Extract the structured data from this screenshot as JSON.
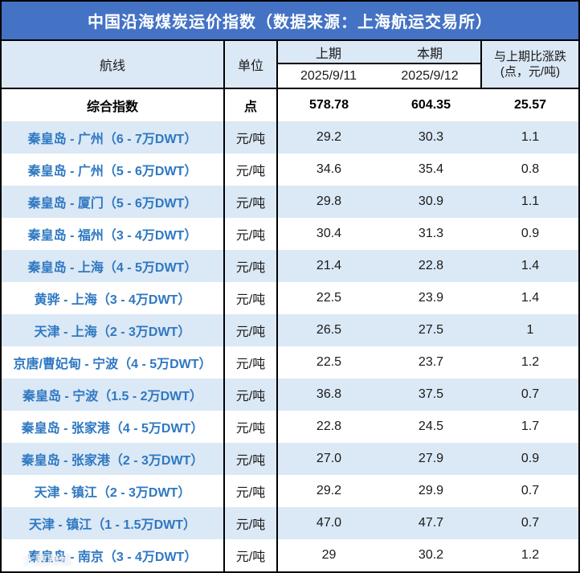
{
  "title": "中国沿海煤炭运价指数（数据来源：上海航运交易所）",
  "header": {
    "route_label": "航线",
    "unit_label": "单位",
    "prev_label": "上期",
    "curr_label": "本期",
    "prev_date": "2025/9/11",
    "curr_date": "2025/9/12",
    "change_label_line1": "与上期比涨跌",
    "change_label_line2": "(点，元/吨)"
  },
  "rows": [
    {
      "route": "综合指数",
      "unit": "点",
      "prev": "578.78",
      "curr": "604.35",
      "change": "25.57",
      "is_index": true
    },
    {
      "route": "秦皇岛 - 广州（6 - 7万DWT）",
      "unit": "元/吨",
      "prev": "29.2",
      "curr": "30.3",
      "change": "1.1"
    },
    {
      "route": "秦皇岛 - 广州（5 - 6万DWT）",
      "unit": "元/吨",
      "prev": "34.6",
      "curr": "35.4",
      "change": "0.8"
    },
    {
      "route": "秦皇岛 - 厦门（5 - 6万DWT）",
      "unit": "元/吨",
      "prev": "29.8",
      "curr": "30.9",
      "change": "1.1"
    },
    {
      "route": "秦皇岛 - 福州（3 - 4万DWT）",
      "unit": "元/吨",
      "prev": "30.4",
      "curr": "31.3",
      "change": "0.9"
    },
    {
      "route": "秦皇岛 - 上海（4 - 5万DWT）",
      "unit": "元/吨",
      "prev": "21.4",
      "curr": "22.8",
      "change": "1.4"
    },
    {
      "route": "黄骅 - 上海（3 - 4万DWT）",
      "unit": "元/吨",
      "prev": "22.5",
      "curr": "23.9",
      "change": "1.4"
    },
    {
      "route": "天津 - 上海（2 - 3万DWT）",
      "unit": "元/吨",
      "prev": "26.5",
      "curr": "27.5",
      "change": "1"
    },
    {
      "route": "京唐/曹妃甸 - 宁波（4 - 5万DWT）",
      "unit": "元/吨",
      "prev": "22.5",
      "curr": "23.7",
      "change": "1.2"
    },
    {
      "route": "秦皇岛 - 宁波（1.5 - 2万DWT）",
      "unit": "元/吨",
      "prev": "36.8",
      "curr": "37.5",
      "change": "0.7"
    },
    {
      "route": "秦皇岛 - 张家港（4 - 5万DWT）",
      "unit": "元/吨",
      "prev": "22.8",
      "curr": "24.5",
      "change": "1.7"
    },
    {
      "route": "秦皇岛 - 张家港（2 - 3万DWT）",
      "unit": "元/吨",
      "prev": "27.0",
      "curr": "27.9",
      "change": "0.9"
    },
    {
      "route": "天津 - 镇江（2 - 3万DWT）",
      "unit": "元/吨",
      "prev": "29.2",
      "curr": "29.9",
      "change": "0.7"
    },
    {
      "route": "天津 - 镇江（1 - 1.5万DWT）",
      "unit": "元/吨",
      "prev": "47.0",
      "curr": "47.7",
      "change": "0.7"
    },
    {
      "route": "秦皇岛 - 南京（3 - 4万DWT）",
      "unit": "元/吨",
      "prev": "29",
      "curr": "30.2",
      "change": "1.2"
    }
  ],
  "watermark": {
    "text": "大数跨境",
    "icon": "Ⓓ"
  },
  "colors": {
    "title_bg": "#4472C4",
    "stripe_bg": "#DBE8F5",
    "route_text": "#2E78C2",
    "border": "#000000",
    "title_text": "#FFFFFF"
  },
  "chart_data": {
    "type": "table",
    "title": "中国沿海煤炭运价指数（数据来源：上海航运交易所）",
    "columns": [
      "航线",
      "单位",
      "上期 2025/9/11",
      "本期 2025/9/12",
      "与上期比涨跌 (点，元/吨)"
    ],
    "rows": [
      [
        "综合指数",
        "点",
        578.78,
        604.35,
        25.57
      ],
      [
        "秦皇岛 - 广州（6 - 7万DWT）",
        "元/吨",
        29.2,
        30.3,
        1.1
      ],
      [
        "秦皇岛 - 广州（5 - 6万DWT）",
        "元/吨",
        34.6,
        35.4,
        0.8
      ],
      [
        "秦皇岛 - 厦门（5 - 6万DWT）",
        "元/吨",
        29.8,
        30.9,
        1.1
      ],
      [
        "秦皇岛 - 福州（3 - 4万DWT）",
        "元/吨",
        30.4,
        31.3,
        0.9
      ],
      [
        "秦皇岛 - 上海（4 - 5万DWT）",
        "元/吨",
        21.4,
        22.8,
        1.4
      ],
      [
        "黄骅 - 上海（3 - 4万DWT）",
        "元/吨",
        22.5,
        23.9,
        1.4
      ],
      [
        "天津 - 上海（2 - 3万DWT）",
        "元/吨",
        26.5,
        27.5,
        1
      ],
      [
        "京唐/曹妃甸 - 宁波（4 - 5万DWT）",
        "元/吨",
        22.5,
        23.7,
        1.2
      ],
      [
        "秦皇岛 - 宁波（1.5 - 2万DWT）",
        "元/吨",
        36.8,
        37.5,
        0.7
      ],
      [
        "秦皇岛 - 张家港（4 - 5万DWT）",
        "元/吨",
        22.8,
        24.5,
        1.7
      ],
      [
        "秦皇岛 - 张家港（2 - 3万DWT）",
        "元/吨",
        27.0,
        27.9,
        0.9
      ],
      [
        "天津 - 镇江（2 - 3万DWT）",
        "元/吨",
        29.2,
        29.9,
        0.7
      ],
      [
        "天津 - 镇江（1 - 1.5万DWT）",
        "元/吨",
        47.0,
        47.7,
        0.7
      ],
      [
        "秦皇岛 - 南京（3 - 4万DWT）",
        "元/吨",
        29,
        30.2,
        1.2
      ]
    ]
  }
}
